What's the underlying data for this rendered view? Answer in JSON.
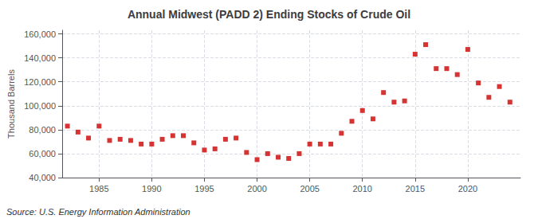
{
  "chart_data": {
    "type": "scatter",
    "title": "Annual Midwest (PADD 2) Ending Stocks of Crude Oil",
    "ylabel": "Thousand Barrels",
    "annotations": [
      "Source: U.S. Energy Information Administration"
    ],
    "x": [
      1982,
      1983,
      1984,
      1985,
      1986,
      1987,
      1988,
      1989,
      1990,
      1991,
      1992,
      1993,
      1994,
      1995,
      1996,
      1997,
      1998,
      1999,
      2000,
      2001,
      2002,
      2003,
      2004,
      2005,
      2006,
      2007,
      2008,
      2009,
      2010,
      2011,
      2012,
      2013,
      2014,
      2015,
      2016,
      2017,
      2018,
      2019,
      2020,
      2021,
      2022,
      2023,
      2024
    ],
    "values": [
      83000,
      78000,
      73000,
      83000,
      71000,
      72000,
      71000,
      68000,
      68000,
      72000,
      75000,
      75000,
      69000,
      63000,
      64000,
      72000,
      73000,
      61000,
      55000,
      60000,
      57000,
      56000,
      60000,
      68000,
      68000,
      68000,
      77000,
      87000,
      96000,
      89000,
      111000,
      103000,
      104000,
      143000,
      151000,
      131000,
      131000,
      126000,
      147000,
      119000,
      107000,
      116000,
      103000
    ],
    "color": "#cc0000",
    "marker": "square",
    "xlim": [
      1981.5,
      2025
    ],
    "xticks": [
      1985,
      1990,
      1995,
      2000,
      2005,
      2010,
      2015,
      2020
    ],
    "ylim": [
      40000,
      163000
    ],
    "yticks": [
      {
        "value": 40000,
        "label": "40,000"
      },
      {
        "value": 60000,
        "label": "60,000"
      },
      {
        "value": 80000,
        "label": "80,000"
      },
      {
        "value": 100000,
        "label": "100,000"
      },
      {
        "value": 120000,
        "label": "120,000"
      },
      {
        "value": 140000,
        "label": "140,000"
      },
      {
        "value": 160000,
        "label": "160,000"
      }
    ],
    "grid": true
  }
}
